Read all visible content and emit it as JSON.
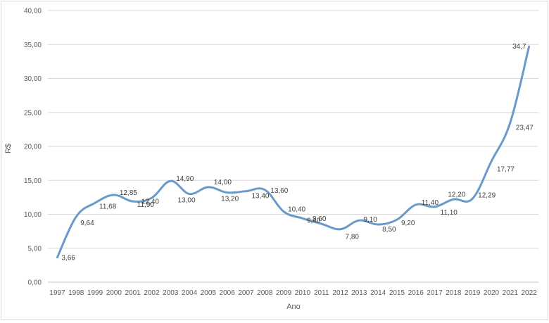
{
  "chart_data": {
    "type": "line",
    "title": "",
    "xlabel": "Ano",
    "ylabel": "R$",
    "ylim": [
      0,
      40
    ],
    "yticks": [
      "0,00",
      "5,00",
      "10,00",
      "15,00",
      "20,00",
      "25,00",
      "30,00",
      "35,00",
      "40,00"
    ],
    "grid": "horizontal",
    "legend": "none",
    "colors": {
      "series": "#6a9ac9",
      "grid": "#d9d9d9",
      "axis": "#bfbfbf"
    },
    "categories": [
      "1997",
      "1998",
      "1999",
      "2000",
      "2001",
      "2002",
      "2003",
      "2004",
      "2005",
      "2006",
      "2007",
      "2008",
      "2009",
      "2010",
      "2011",
      "2012",
      "2013",
      "2014",
      "2015",
      "2016",
      "2017",
      "2018",
      "2019",
      "2020",
      "2021",
      "2022"
    ],
    "values": [
      3.66,
      9.64,
      11.68,
      12.85,
      11.9,
      12.4,
      14.9,
      13.0,
      14.0,
      13.2,
      13.4,
      13.6,
      10.4,
      9.4,
      8.6,
      7.8,
      9.1,
      8.5,
      9.2,
      11.4,
      11.1,
      12.2,
      12.29,
      17.77,
      23.47,
      34.7
    ],
    "data_labels": [
      "3,66",
      "9,64",
      "11,68",
      "12,85",
      "11,90",
      "12,40",
      "14,90",
      "13,00",
      "14,00",
      "13,20",
      "13,40",
      "13,60",
      "10,40",
      "9,40",
      "8,60",
      "7,80",
      "9,10",
      "8,50",
      "9,20",
      "11,40",
      "11,10",
      "12,20",
      "12,29",
      "17,77",
      "23,47",
      "34,7"
    ]
  }
}
